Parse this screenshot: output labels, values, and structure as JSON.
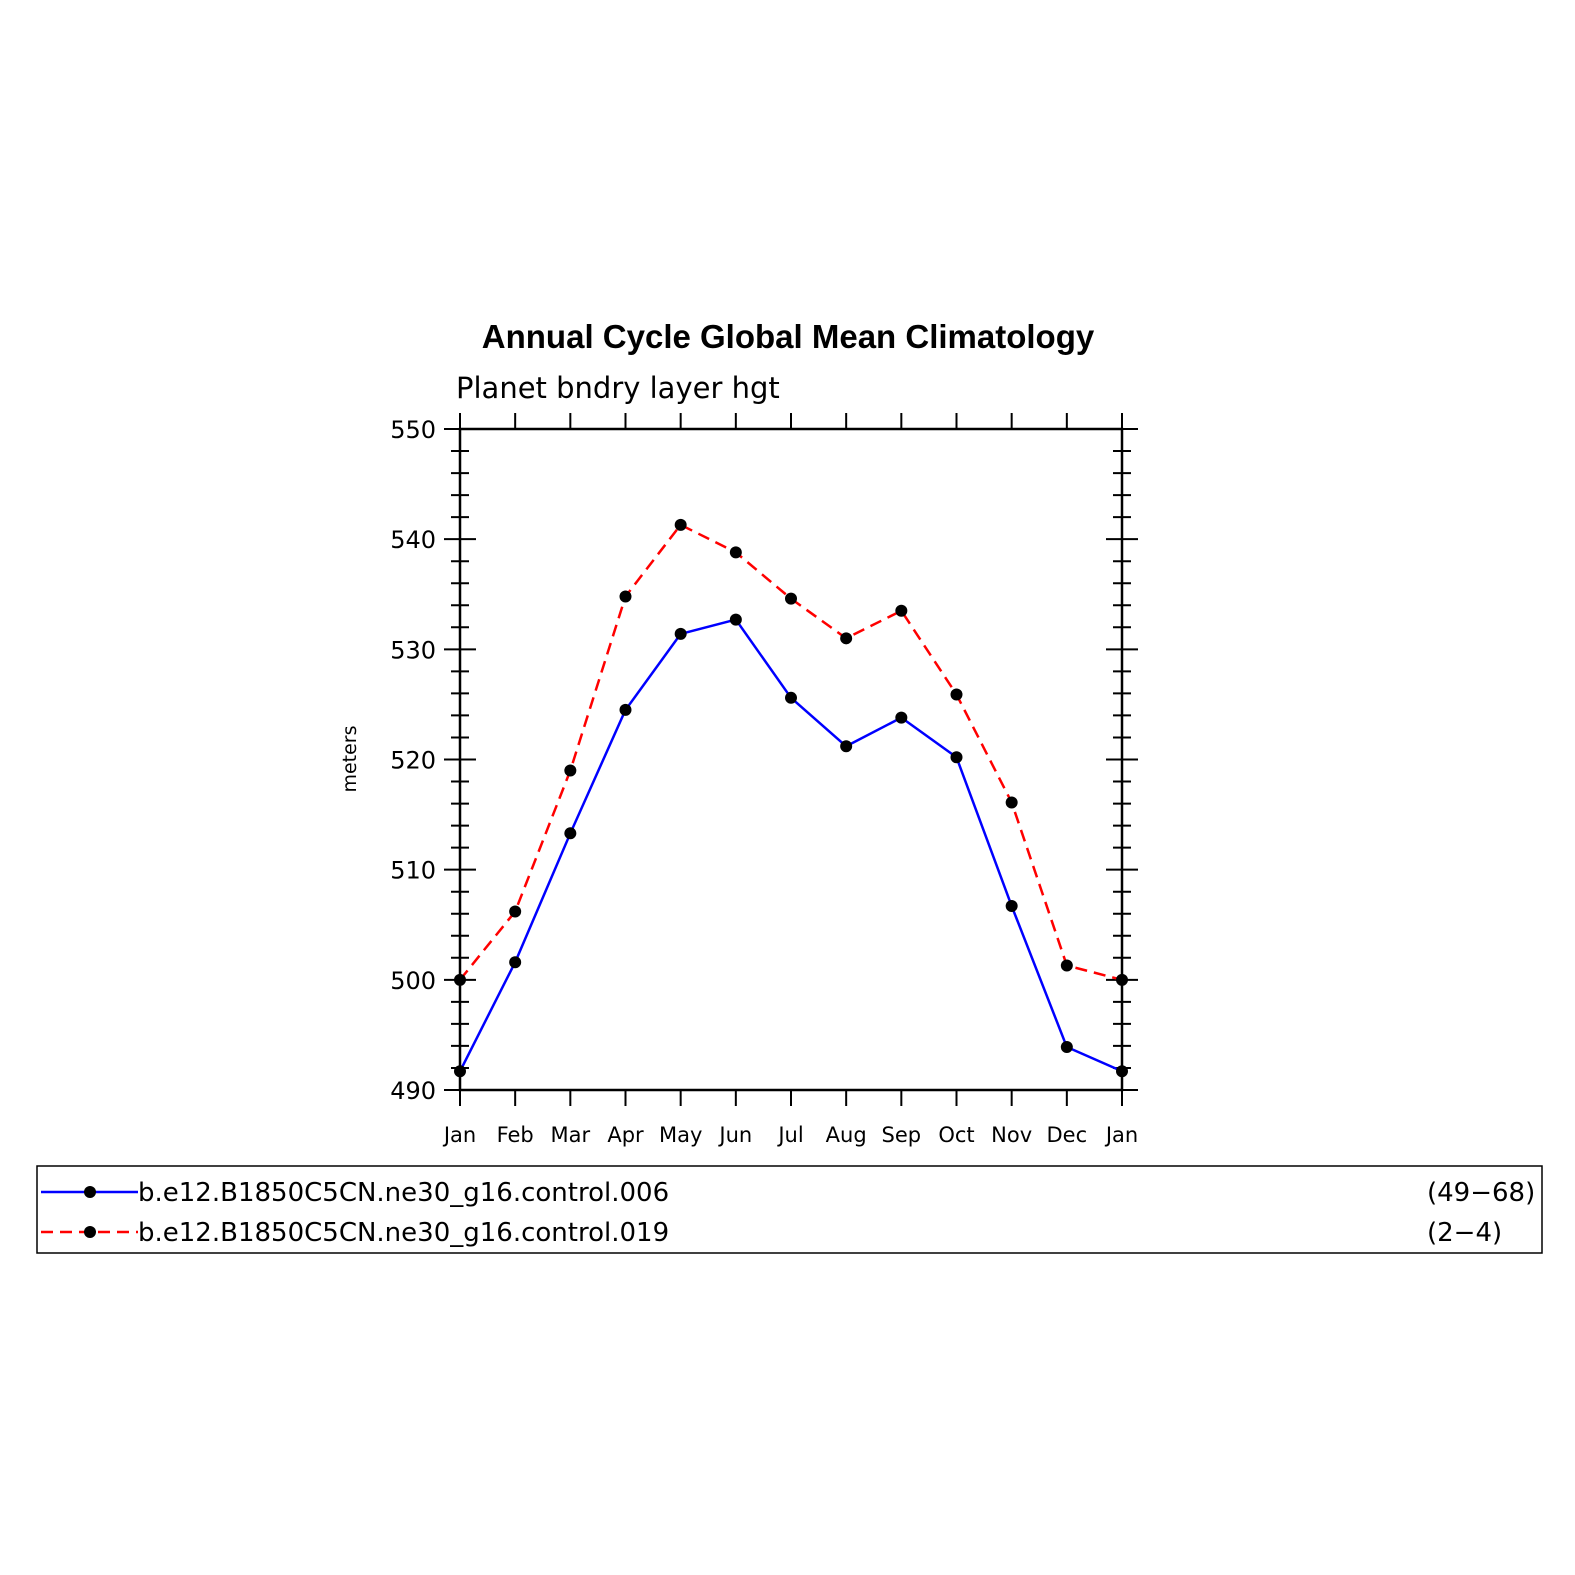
{
  "chart_data": {
    "type": "line",
    "title": "Annual Cycle Global Mean Climatology",
    "subtitle": "Planet bndry layer hgt",
    "ylabel": "meters",
    "xlabel": "",
    "categories": [
      "Jan",
      "Feb",
      "Mar",
      "Apr",
      "May",
      "Jun",
      "Jul",
      "Aug",
      "Sep",
      "Oct",
      "Nov",
      "Dec",
      "Jan"
    ],
    "ylim": [
      490,
      550
    ],
    "yticks": [
      490,
      500,
      510,
      520,
      530,
      540,
      550
    ],
    "grid": false,
    "legend_position": "bottom",
    "series": [
      {
        "name": "b.e12.B1850C5CN.ne30_g16.control.006",
        "years": "(49−68)",
        "color": "#0000ff",
        "dash": "solid",
        "marker": "circle",
        "values": [
          491.7,
          501.6,
          513.3,
          524.5,
          531.4,
          532.7,
          525.6,
          521.2,
          523.8,
          520.2,
          506.7,
          493.9,
          491.7
        ]
      },
      {
        "name": "b.e12.B1850C5CN.ne30_g16.control.019",
        "years": "(2−4)",
        "color": "#ff0000",
        "dash": "dashed",
        "marker": "circle",
        "values": [
          500.0,
          506.2,
          519.0,
          534.8,
          541.3,
          538.8,
          534.6,
          531.0,
          533.5,
          525.9,
          516.1,
          501.3,
          500.0
        ]
      }
    ]
  }
}
